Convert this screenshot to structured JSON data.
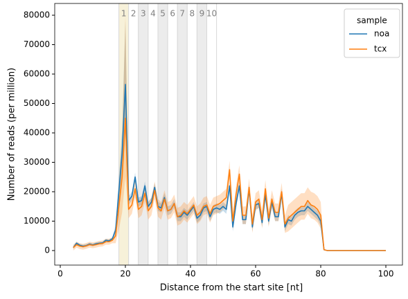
{
  "chart_data": {
    "type": "line",
    "xlabel": "Distance from the start site [nt]",
    "ylabel": "Number of reads (per million)",
    "xlim": [
      -1.7,
      105.1
    ],
    "ylim": [
      -4940,
      84000
    ],
    "xticks": [
      0,
      20,
      40,
      60,
      80,
      100
    ],
    "yticks": [
      0,
      10000,
      20000,
      30000,
      40000,
      50000,
      60000,
      70000,
      80000
    ],
    "legend_title": "sample",
    "legend_position": "upper right",
    "regions": [
      {
        "label": "1",
        "start": 18,
        "end": 21,
        "color": "#f7f1d9"
      },
      {
        "label": "2",
        "start": 21,
        "end": 24,
        "color": "#ffffff"
      },
      {
        "label": "3",
        "start": 24,
        "end": 27,
        "color": "#ececec"
      },
      {
        "label": "4",
        "start": 27,
        "end": 30,
        "color": "#ffffff"
      },
      {
        "label": "5",
        "start": 30,
        "end": 33,
        "color": "#ececec"
      },
      {
        "label": "6",
        "start": 33,
        "end": 36,
        "color": "#ffffff"
      },
      {
        "label": "7",
        "start": 36,
        "end": 39,
        "color": "#ececec"
      },
      {
        "label": "8",
        "start": 39,
        "end": 42,
        "color": "#ffffff"
      },
      {
        "label": "9",
        "start": 42,
        "end": 45,
        "color": "#ececec"
      },
      {
        "label": "10",
        "start": 45,
        "end": 48,
        "color": "#ffffff"
      }
    ],
    "x": [
      4,
      5,
      6,
      7,
      8,
      9,
      10,
      11,
      12,
      13,
      14,
      15,
      16,
      17,
      18,
      19,
      20,
      21,
      22,
      23,
      24,
      25,
      26,
      27,
      28,
      29,
      30,
      31,
      32,
      33,
      34,
      35,
      36,
      37,
      38,
      39,
      40,
      41,
      42,
      43,
      44,
      45,
      46,
      47,
      48,
      49,
      50,
      51,
      52,
      53,
      54,
      55,
      56,
      57,
      58,
      59,
      60,
      61,
      62,
      63,
      64,
      65,
      66,
      67,
      68,
      69,
      70,
      71,
      72,
      73,
      74,
      75,
      76,
      77,
      78,
      79,
      80,
      81,
      82,
      83,
      84,
      85,
      86,
      87,
      88,
      89,
      90,
      91,
      92,
      93,
      94,
      95,
      96,
      97,
      98,
      99,
      100
    ],
    "series": [
      {
        "name": "noa",
        "color": "#1f77b4",
        "values": [
          1000,
          2500,
          1800,
          1500,
          1700,
          2200,
          1900,
          2300,
          2500,
          2600,
          3500,
          3300,
          4000,
          7000,
          20000,
          33000,
          56500,
          17000,
          18500,
          25000,
          16500,
          17000,
          22000,
          15000,
          16500,
          21500,
          15000,
          14500,
          18000,
          13500,
          14000,
          16000,
          11500,
          11500,
          13000,
          12000,
          13500,
          15000,
          11000,
          12000,
          14500,
          15000,
          11500,
          14000,
          14500,
          14000,
          15000,
          14000,
          22000,
          8000,
          16000,
          22000,
          10500,
          10500,
          21000,
          8000,
          15500,
          16000,
          9500,
          19000,
          10000,
          16500,
          11500,
          11500,
          19500,
          8000,
          10500,
          10000,
          12000,
          13000,
          13500,
          13500,
          15000,
          14000,
          13000,
          12000,
          10000,
          300,
          0,
          0,
          0,
          0,
          0,
          0,
          0,
          0,
          0,
          0,
          0,
          0,
          0,
          0,
          0,
          0,
          0,
          0,
          0
        ],
        "lower": [
          500,
          2000,
          1300,
          1000,
          1200,
          1700,
          1400,
          1800,
          2000,
          2100,
          3000,
          2800,
          3500,
          5500,
          15000,
          25000,
          40000,
          15500,
          17000,
          23500,
          15000,
          15500,
          20500,
          13500,
          15000,
          20000,
          13500,
          13000,
          16500,
          12000,
          12500,
          14500,
          10000,
          10000,
          11500,
          10500,
          12000,
          13500,
          9500,
          10500,
          13000,
          13500,
          10000,
          12500,
          13000,
          12500,
          13500,
          12500,
          20500,
          6500,
          14500,
          20500,
          9000,
          9000,
          19500,
          6500,
          14000,
          14500,
          8000,
          17500,
          8500,
          15000,
          10000,
          10000,
          18000,
          6500,
          9000,
          8500,
          10500,
          11500,
          12000,
          12000,
          13500,
          12500,
          11500,
          10500,
          8500,
          100,
          0,
          0,
          0,
          0,
          0,
          0,
          0,
          0,
          0,
          0,
          0,
          0,
          0,
          0,
          0,
          0,
          0,
          0,
          0
        ],
        "upper": [
          1500,
          3000,
          2300,
          2000,
          2200,
          2700,
          2400,
          2800,
          3000,
          3100,
          4000,
          3800,
          4500,
          8500,
          25000,
          41000,
          78000,
          18500,
          20000,
          26500,
          18000,
          18500,
          23500,
          16500,
          18000,
          23000,
          16500,
          16000,
          19500,
          15000,
          15500,
          17500,
          13000,
          13000,
          14500,
          13500,
          15000,
          16500,
          12500,
          13500,
          16000,
          16500,
          13000,
          15500,
          16000,
          15500,
          16500,
          15500,
          23500,
          9500,
          17500,
          23500,
          12000,
          12000,
          22500,
          9500,
          17000,
          17500,
          11000,
          20500,
          11500,
          18000,
          13000,
          13000,
          21000,
          9500,
          12000,
          11500,
          13500,
          14500,
          15000,
          15000,
          16500,
          15500,
          14500,
          13500,
          11500,
          500,
          0,
          0,
          0,
          0,
          0,
          0,
          0,
          0,
          0,
          0,
          0,
          0,
          0,
          0,
          0,
          0,
          0,
          0,
          0
        ]
      },
      {
        "name": "tcx",
        "color": "#ff7f0e",
        "values": [
          1000,
          2000,
          1500,
          1300,
          1600,
          2000,
          1800,
          2000,
          2300,
          2400,
          3000,
          3000,
          3500,
          5000,
          15000,
          25000,
          45000,
          14000,
          15500,
          21000,
          14000,
          15000,
          19500,
          13500,
          15000,
          20500,
          14500,
          13500,
          17500,
          13500,
          14000,
          16000,
          11500,
          12000,
          13500,
          12500,
          14000,
          15500,
          12000,
          13000,
          15000,
          15500,
          12500,
          15000,
          15500,
          16000,
          17000,
          18000,
          27500,
          10000,
          19000,
          26000,
          12000,
          12000,
          21500,
          9000,
          16500,
          17500,
          10500,
          21000,
          11000,
          17500,
          13000,
          13000,
          20000,
          9000,
          11000,
          12000,
          13000,
          14000,
          15000,
          15000,
          17000,
          15500,
          15000,
          14000,
          12000,
          300,
          0,
          0,
          0,
          0,
          0,
          0,
          0,
          0,
          0,
          0,
          0,
          0,
          0,
          0,
          0,
          0,
          0,
          0,
          0
        ],
        "lower": [
          0,
          1000,
          500,
          300,
          600,
          1000,
          800,
          1000,
          1300,
          1400,
          2000,
          2000,
          2500,
          2500,
          7000,
          13000,
          25000,
          11000,
          12500,
          18000,
          11000,
          12000,
          16500,
          10500,
          12000,
          17500,
          11500,
          10500,
          14500,
          10500,
          11000,
          13000,
          8500,
          9000,
          10500,
          9500,
          11000,
          12500,
          9000,
          10000,
          12000,
          12500,
          9500,
          12000,
          12500,
          13000,
          14000,
          15000,
          24500,
          7000,
          16000,
          23000,
          9000,
          9000,
          18500,
          6000,
          13500,
          14500,
          7500,
          18000,
          8000,
          14500,
          10000,
          10000,
          17000,
          6000,
          6500,
          7500,
          8500,
          9500,
          10500,
          10500,
          12500,
          11000,
          10500,
          9500,
          7500,
          100,
          0,
          0,
          0,
          0,
          0,
          0,
          0,
          0,
          0,
          0,
          0,
          0,
          0,
          0,
          0,
          0,
          0,
          0,
          0
        ],
        "upper": [
          2000,
          3000,
          2500,
          2300,
          2600,
          3000,
          2800,
          3000,
          3300,
          3400,
          4000,
          4000,
          4500,
          7500,
          23000,
          37000,
          80000,
          17000,
          18500,
          24000,
          17000,
          18000,
          22500,
          16500,
          18000,
          23500,
          17500,
          16500,
          20500,
          16500,
          17000,
          19000,
          14500,
          15000,
          16500,
          15500,
          17000,
          18500,
          15000,
          16000,
          18000,
          18500,
          15500,
          18000,
          18500,
          19000,
          20000,
          21000,
          30500,
          13000,
          22000,
          29000,
          15000,
          15000,
          24500,
          12000,
          19500,
          20500,
          13500,
          24000,
          14000,
          20500,
          16000,
          16000,
          23000,
          12000,
          15500,
          16500,
          17500,
          18500,
          19500,
          19500,
          21500,
          20000,
          19500,
          18500,
          16500,
          500,
          0,
          0,
          0,
          0,
          0,
          0,
          0,
          0,
          0,
          0,
          0,
          0,
          0,
          0,
          0,
          0,
          0,
          0,
          0
        ]
      }
    ]
  }
}
